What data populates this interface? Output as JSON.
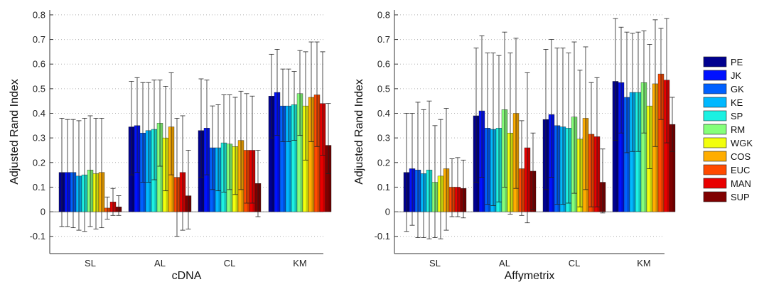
{
  "legend": {
    "entries": [
      "PE",
      "JK",
      "GK",
      "KE",
      "SP",
      "RM",
      "WGK",
      "COS",
      "EUC",
      "MAN",
      "SUP"
    ],
    "colors": [
      "#00008f",
      "#0011ff",
      "#0060ff",
      "#00b8ff",
      "#1cf1e2",
      "#85ff7a",
      "#f2ff0d",
      "#ffad00",
      "#ff4a00",
      "#e90000",
      "#800000"
    ]
  },
  "chart_data": [
    {
      "type": "bar",
      "xlabel": "cDNA",
      "ylabel": "Adjusted Rand Index",
      "ylim": [
        -0.17,
        0.82
      ],
      "yticks": [
        "-0.1",
        "0",
        "0.1",
        "0.2",
        "0.3",
        "0.4",
        "0.5",
        "0.6",
        "0.7",
        "0.8"
      ],
      "grid": "dotted horizontal",
      "categories": [
        "SL",
        "AL",
        "CL",
        "KM"
      ],
      "series": [
        {
          "name": "PE",
          "values": [
            0.16,
            0.345,
            0.33,
            0.47
          ],
          "lower": [
            -0.06,
            0.15,
            0.14,
            0.3
          ],
          "upper": [
            0.38,
            0.53,
            0.54,
            0.64
          ]
        },
        {
          "name": "JK",
          "values": [
            0.16,
            0.35,
            0.34,
            0.485
          ],
          "lower": [
            -0.06,
            0.16,
            0.15,
            0.31
          ],
          "upper": [
            0.375,
            0.545,
            0.535,
            0.66
          ]
        },
        {
          "name": "GK",
          "values": [
            0.16,
            0.32,
            0.26,
            0.43
          ],
          "lower": [
            -0.065,
            0.12,
            0.09,
            0.285
          ],
          "upper": [
            0.375,
            0.525,
            0.43,
            0.58
          ]
        },
        {
          "name": "KE",
          "values": [
            0.145,
            0.33,
            0.26,
            0.43
          ],
          "lower": [
            -0.075,
            0.12,
            0.085,
            0.285
          ],
          "upper": [
            0.37,
            0.525,
            0.435,
            0.58
          ]
        },
        {
          "name": "SP",
          "values": [
            0.15,
            0.335,
            0.28,
            0.435
          ],
          "lower": [
            -0.08,
            0.13,
            0.08,
            0.29
          ],
          "upper": [
            0.38,
            0.535,
            0.475,
            0.57
          ]
        },
        {
          "name": "RM",
          "values": [
            0.17,
            0.36,
            0.275,
            0.48
          ],
          "lower": [
            -0.06,
            0.185,
            0.09,
            0.31
          ],
          "upper": [
            0.39,
            0.535,
            0.475,
            0.655
          ]
        },
        {
          "name": "WGK",
          "values": [
            0.155,
            0.3,
            0.265,
            0.43
          ],
          "lower": [
            -0.07,
            0.085,
            0.07,
            0.21
          ],
          "upper": [
            0.38,
            0.51,
            0.465,
            0.65
          ]
        },
        {
          "name": "COS",
          "values": [
            0.16,
            0.345,
            0.29,
            0.465
          ],
          "lower": [
            -0.065,
            0.15,
            0.09,
            0.285
          ],
          "upper": [
            0.38,
            0.565,
            0.49,
            0.69
          ]
        },
        {
          "name": "EUC",
          "values": [
            0.015,
            0.14,
            0.25,
            0.475
          ],
          "lower": [
            -0.03,
            -0.1,
            0.035,
            0.265
          ],
          "upper": [
            0.06,
            0.38,
            0.48,
            0.69
          ]
        },
        {
          "name": "MAN",
          "values": [
            0.04,
            0.16,
            0.25,
            0.44
          ],
          "lower": [
            -0.015,
            -0.075,
            0.035,
            0.23
          ],
          "upper": [
            0.095,
            0.39,
            0.47,
            0.65
          ]
        },
        {
          "name": "SUP",
          "values": [
            0.02,
            0.065,
            0.115,
            0.27
          ],
          "lower": [
            -0.015,
            -0.07,
            -0.02,
            0.155
          ],
          "upper": [
            0.065,
            0.25,
            0.25,
            0.44
          ]
        }
      ]
    },
    {
      "type": "bar",
      "xlabel": "Affymetrix",
      "ylabel": "Adjusted Rand Index",
      "ylim": [
        -0.17,
        0.82
      ],
      "yticks": [
        "-0.1",
        "0",
        "0.1",
        "0.2",
        "0.3",
        "0.4",
        "0.5",
        "0.6",
        "0.7",
        "0.8"
      ],
      "grid": "dotted horizontal",
      "categories": [
        "SL",
        "AL",
        "CL",
        "KM"
      ],
      "series": [
        {
          "name": "PE",
          "values": [
            0.16,
            0.39,
            0.375,
            0.53
          ],
          "lower": [
            -0.08,
            0.12,
            0.09,
            0.29
          ],
          "upper": [
            0.4,
            0.665,
            0.66,
            0.785
          ]
        },
        {
          "name": "JK",
          "values": [
            0.175,
            0.41,
            0.395,
            0.525
          ],
          "lower": [
            -0.055,
            0.14,
            0.14,
            0.32
          ],
          "upper": [
            0.4,
            0.715,
            0.7,
            0.75
          ]
        },
        {
          "name": "GK",
          "values": [
            0.17,
            0.34,
            0.35,
            0.465
          ],
          "lower": [
            -0.105,
            0.03,
            0.03,
            0.24
          ],
          "upper": [
            0.445,
            0.645,
            0.665,
            0.73
          ]
        },
        {
          "name": "KE",
          "values": [
            0.155,
            0.335,
            0.345,
            0.485
          ],
          "lower": [
            -0.105,
            0.025,
            0.03,
            0.245
          ],
          "upper": [
            0.415,
            0.645,
            0.665,
            0.725
          ]
        },
        {
          "name": "SP",
          "values": [
            0.17,
            0.34,
            0.34,
            0.485
          ],
          "lower": [
            -0.11,
            0.04,
            0.035,
            0.245
          ],
          "upper": [
            0.45,
            0.635,
            0.645,
            0.73
          ]
        },
        {
          "name": "RM",
          "values": [
            0.12,
            0.415,
            0.385,
            0.525
          ],
          "lower": [
            -0.105,
            0.1,
            0.075,
            0.32
          ],
          "upper": [
            0.35,
            0.73,
            0.69,
            0.735
          ]
        },
        {
          "name": "WGK",
          "values": [
            0.145,
            0.32,
            0.295,
            0.43
          ],
          "lower": [
            -0.11,
            -0.01,
            0.02,
            0.175
          ],
          "upper": [
            0.375,
            0.645,
            0.575,
            0.68
          ]
        },
        {
          "name": "COS",
          "values": [
            0.175,
            0.4,
            0.38,
            0.52
          ],
          "lower": [
            -0.075,
            0.095,
            0.09,
            0.265
          ],
          "upper": [
            0.42,
            0.705,
            0.67,
            0.78
          ]
        },
        {
          "name": "EUC",
          "values": [
            0.1,
            0.175,
            0.315,
            0.56
          ],
          "lower": [
            -0.02,
            -0.015,
            0.02,
            0.375
          ],
          "upper": [
            0.215,
            0.37,
            0.525,
            0.745
          ]
        },
        {
          "name": "MAN",
          "values": [
            0.1,
            0.26,
            0.305,
            0.535
          ],
          "lower": [
            -0.02,
            -0.045,
            0.02,
            0.28
          ],
          "upper": [
            0.22,
            0.565,
            0.545,
            0.785
          ]
        },
        {
          "name": "SUP",
          "values": [
            0.095,
            0.165,
            0.12,
            0.355
          ],
          "lower": [
            -0.025,
            0.01,
            -0.005,
            0.245
          ],
          "upper": [
            0.21,
            0.32,
            0.255,
            0.465
          ]
        }
      ]
    }
  ]
}
